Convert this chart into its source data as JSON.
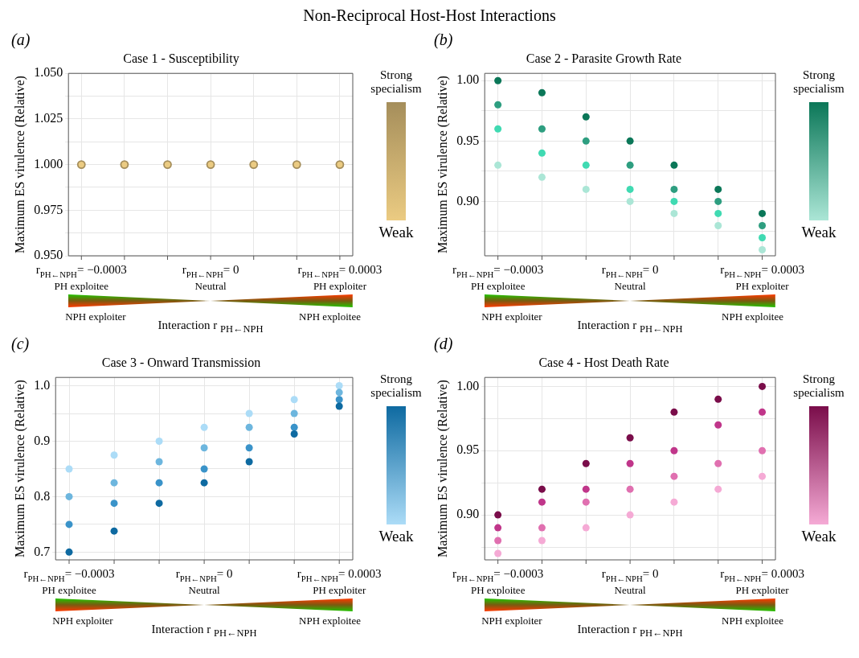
{
  "chart_data": [
    {
      "type": "scatter",
      "title": "Case 1 - Susceptibility",
      "xlabel": "Interaction r $_{PH←NPH}$",
      "ylabel": "Maximum ES virulence (Relative)",
      "clabel": "Strong specialism",
      "categories": [
        "r$_{PH←NPH}$= −0.0003",
        null,
        null,
        "r$_{PH←NPH}$= 0",
        null,
        null,
        "r$_{PH←NPH}$= 0.0003"
      ],
      "series": [
        {
          "color": "#ebcb82",
          "values": [
            1.0,
            1.0,
            1.0,
            1.0,
            1.0,
            1.0,
            1.0
          ]
        }
      ],
      "ylim": [
        0.95,
        1.05
      ],
      "yticks": [
        {
          "value": 0.95,
          "label": "0.950"
        },
        {
          "value": 0.9625,
          "label": null
        },
        {
          "value": 0.975,
          "label": "0.975"
        },
        {
          "value": 0.9875,
          "label": null
        },
        {
          "value": 1.0,
          "label": "1.000"
        },
        {
          "value": 1.0125,
          "label": null
        },
        {
          "value": 1.025,
          "label": "1.025"
        },
        {
          "value": 1.0375,
          "label": null
        },
        {
          "value": 1.05,
          "label": "1.050"
        }
      ],
      "grid": true,
      "marker": "circle",
      "annotations": [
        "(a)",
        "PH exploitee",
        "Neutral",
        "PH exploiter",
        "NPH exploiter",
        "NPH exploitee",
        "Weak",
        "Non-Reciprocal Host-Host Interactions"
      ]
    },
    {
      "type": "scatter",
      "title": "Case 2 - Parasite Growth Rate",
      "xlabel": "Interaction r $_{PH←NPH}$",
      "ylabel": "Maximum ES virulence (Relative)",
      "clabel": "Strong specialism",
      "categories": [
        "r$_{PH←NPH}$= −0.0003",
        null,
        null,
        "r$_{PH←NPH}$= 0",
        null,
        null,
        "r$_{PH←NPH}$= 0.0003"
      ],
      "series": [
        {
          "color": "#0b7758",
          "values": [
            1.0,
            0.99,
            0.97,
            0.95,
            0.93,
            0.91,
            0.89
          ]
        },
        {
          "color": "#2e9e80",
          "values": [
            0.98,
            0.96,
            0.95,
            0.93,
            0.91,
            0.9,
            0.88
          ]
        },
        {
          "color": "#40dab2",
          "values": [
            0.96,
            0.94,
            0.93,
            0.91,
            0.9,
            0.89,
            0.87
          ]
        },
        {
          "color": "#abe6d6",
          "values": [
            0.93,
            0.92,
            0.91,
            0.9,
            0.89,
            0.88,
            0.86
          ]
        }
      ],
      "ylim": [
        0.855,
        1.006
      ],
      "yticks": [
        {
          "value": 0.875,
          "label": null
        },
        {
          "value": 0.9,
          "label": "0.90"
        },
        {
          "value": 0.925,
          "label": null
        },
        {
          "value": 0.95,
          "label": "0.95"
        },
        {
          "value": 0.975,
          "label": null
        },
        {
          "value": 1.0,
          "label": "1.00"
        }
      ],
      "grid": true,
      "marker": "circle",
      "annotations": [
        "(b)",
        "PH exploitee",
        "Neutral",
        "PH exploiter",
        "NPH exploiter",
        "NPH exploitee",
        "Weak"
      ]
    },
    {
      "type": "scatter",
      "title": "Case 3 - Onward Transmission",
      "xlabel": "Interaction r $_{PH←NPH}$",
      "ylabel": "Maximum ES virulence (Relative)",
      "clabel": "Strong specialism",
      "categories": [
        "r$_{PH←NPH}$= −0.0003",
        null,
        null,
        "r$_{PH←NPH}$= 0",
        null,
        null,
        "r$_{PH←NPH}$= 0.0003"
      ],
      "series": [
        {
          "color": "#0e6aa1",
          "values": [
            0.7,
            0.738,
            0.788,
            0.825,
            0.863,
            0.913,
            0.963
          ]
        },
        {
          "color": "#3a93c9",
          "values": [
            0.75,
            0.788,
            0.825,
            0.85,
            0.888,
            0.925,
            0.975
          ]
        },
        {
          "color": "#6db6de",
          "values": [
            0.8,
            0.825,
            0.863,
            0.888,
            0.925,
            0.95,
            0.988
          ]
        },
        {
          "color": "#acdcf7",
          "values": [
            0.85,
            0.875,
            0.9,
            0.925,
            0.95,
            0.975,
            1.0
          ]
        }
      ],
      "ylim": [
        0.686,
        1.015
      ],
      "yticks": [
        {
          "value": 0.7,
          "label": "0.7"
        },
        {
          "value": 0.75,
          "label": null
        },
        {
          "value": 0.8,
          "label": "0.8"
        },
        {
          "value": 0.85,
          "label": null
        },
        {
          "value": 0.9,
          "label": "0.9"
        },
        {
          "value": 0.95,
          "label": null
        },
        {
          "value": 1.0,
          "label": "1.0"
        }
      ],
      "grid": true,
      "marker": "circle",
      "annotations": [
        "(c)",
        "PH exploitee",
        "Neutral",
        "PH exploiter",
        "NPH exploiter",
        "NPH exploitee",
        "Weak"
      ]
    },
    {
      "type": "scatter",
      "title": "Case 4 - Host Death Rate",
      "xlabel": "Interaction r $_{PH←NPH}$",
      "ylabel": "Maximum ES virulence (Relative)",
      "clabel": "Strong specialism",
      "categories": [
        "r$_{PH←NPH}$= −0.0003",
        null,
        null,
        "r$_{PH←NPH}$= 0",
        null,
        null,
        "r$_{PH←NPH}$= 0.0003"
      ],
      "series": [
        {
          "color": "#7a0d4a",
          "values": [
            0.9,
            0.92,
            0.94,
            0.96,
            0.98,
            0.99,
            1.0
          ]
        },
        {
          "color": "#c0368a",
          "values": [
            0.89,
            0.91,
            0.92,
            0.94,
            0.95,
            0.97,
            0.98
          ]
        },
        {
          "color": "#e070b0",
          "values": [
            0.88,
            0.89,
            0.91,
            0.92,
            0.93,
            0.94,
            0.95
          ]
        },
        {
          "color": "#f5aad5",
          "values": [
            0.87,
            0.88,
            0.89,
            0.9,
            0.91,
            0.92,
            0.93
          ]
        }
      ],
      "ylim": [
        0.865,
        1.007
      ],
      "yticks": [
        {
          "value": 0.875,
          "label": null
        },
        {
          "value": 0.9,
          "label": "0.90"
        },
        {
          "value": 0.925,
          "label": null
        },
        {
          "value": 0.95,
          "label": "0.95"
        },
        {
          "value": 0.975,
          "label": null
        },
        {
          "value": 1.0,
          "label": "1.00"
        }
      ],
      "grid": true,
      "marker": "circle",
      "annotations": [
        "(d)",
        "PH exploitee",
        "Neutral",
        "PH exploiter",
        "NPH exploiter",
        "NPH exploitee",
        "Weak"
      ]
    }
  ]
}
